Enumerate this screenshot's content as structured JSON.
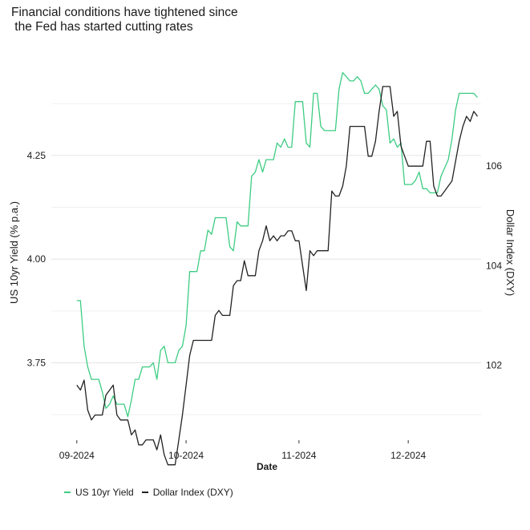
{
  "chart_data": {
    "type": "line",
    "title": "Financial conditions have tightened since\n the Fed has started cutting rates",
    "xlabel": "Date",
    "ylabel_left": "US 10yr Yield (% p.a.)",
    "ylabel_right": "Dollar Index (DXY)",
    "x_ticks": [
      "09-2024",
      "10-2024",
      "11-2024",
      "12-2024"
    ],
    "x_range_days": [
      -7,
      111
    ],
    "x_tick_days": [
      0,
      30,
      61,
      91
    ],
    "ylim_left": [
      3.6,
      4.48
    ],
    "y_ticks_left": [
      3.75,
      4.0,
      4.25
    ],
    "y_tick_labels_left": [
      "3.75",
      "4.00",
      "4.25"
    ],
    "ylim_right": [
      100.8,
      108.13
    ],
    "y_ticks_right": [
      102,
      104,
      106
    ],
    "y_tick_labels_right": [
      "102",
      "104",
      "106"
    ],
    "grid": true,
    "legend_position": "bottom",
    "series": [
      {
        "name": "US 10yr Yield",
        "color": "#3dcc82",
        "axis": "left",
        "x": [
          0,
          1,
          2,
          3,
          4,
          5,
          6,
          7,
          8,
          9,
          10,
          11,
          12,
          13,
          14,
          15,
          16,
          17,
          18,
          19,
          20,
          21,
          22,
          23,
          24,
          25,
          26,
          27,
          28,
          29,
          30,
          31,
          32,
          33,
          34,
          35,
          36,
          37,
          38,
          39,
          40,
          41,
          42,
          43,
          44,
          45,
          46,
          47,
          48,
          49,
          50,
          51,
          52,
          53,
          54,
          55,
          56,
          57,
          58,
          59,
          60,
          61,
          62,
          63,
          64,
          65,
          66,
          67,
          68,
          69,
          70,
          71,
          72,
          73,
          74,
          75,
          76,
          77,
          78,
          79,
          80,
          81,
          82,
          83,
          84,
          85,
          86,
          87,
          88,
          89,
          90,
          91,
          92,
          93,
          94,
          95,
          96,
          97,
          98,
          99,
          100,
          101,
          102,
          103,
          104,
          105,
          106,
          107,
          108,
          109,
          110
        ],
        "values": [
          3.9,
          3.9,
          3.79,
          3.74,
          3.71,
          3.71,
          3.71,
          3.68,
          3.64,
          3.65,
          3.67,
          3.65,
          3.65,
          3.65,
          3.62,
          3.66,
          3.71,
          3.71,
          3.74,
          3.74,
          3.74,
          3.75,
          3.71,
          3.78,
          3.79,
          3.75,
          3.75,
          3.75,
          3.78,
          3.79,
          3.84,
          3.97,
          3.97,
          3.97,
          4.02,
          4.02,
          4.07,
          4.06,
          4.1,
          4.1,
          4.1,
          4.1,
          4.03,
          4.02,
          4.09,
          4.08,
          4.08,
          4.08,
          4.2,
          4.21,
          4.24,
          4.21,
          4.24,
          4.24,
          4.24,
          4.28,
          4.27,
          4.29,
          4.27,
          4.27,
          4.38,
          4.38,
          4.38,
          4.28,
          4.27,
          4.4,
          4.4,
          4.32,
          4.31,
          4.31,
          4.31,
          4.31,
          4.41,
          4.45,
          4.44,
          4.43,
          4.43,
          4.44,
          4.43,
          4.4,
          4.4,
          4.41,
          4.42,
          4.41,
          4.37,
          4.36,
          4.28,
          4.29,
          4.27,
          4.28,
          4.18,
          4.18,
          4.18,
          4.19,
          4.21,
          4.17,
          4.17,
          4.16,
          4.16,
          4.16,
          4.2,
          4.22,
          4.24,
          4.29,
          4.36,
          4.4,
          4.4,
          4.4,
          4.4,
          4.4,
          4.39
        ]
      },
      {
        "name": "Dollar Index (DXY)",
        "color": "#222222",
        "axis": "right",
        "x": [
          0,
          1,
          2,
          3,
          4,
          5,
          6,
          7,
          8,
          9,
          10,
          11,
          12,
          13,
          14,
          15,
          16,
          17,
          18,
          19,
          20,
          21,
          22,
          23,
          24,
          25,
          26,
          27,
          28,
          29,
          30,
          31,
          32,
          33,
          34,
          35,
          36,
          37,
          38,
          39,
          40,
          41,
          42,
          43,
          44,
          45,
          46,
          47,
          48,
          49,
          50,
          51,
          52,
          53,
          54,
          55,
          56,
          57,
          58,
          59,
          60,
          61,
          62,
          63,
          64,
          65,
          66,
          67,
          68,
          69,
          70,
          71,
          72,
          73,
          74,
          75,
          76,
          77,
          78,
          79,
          80,
          81,
          82,
          83,
          84,
          85,
          86,
          87,
          88,
          89,
          90,
          91,
          92,
          93,
          94,
          95,
          96,
          97,
          98,
          99,
          100,
          101,
          102,
          103,
          104,
          105,
          106,
          107,
          108,
          109,
          110
        ],
        "values": [
          101.6,
          101.5,
          101.7,
          101.1,
          100.9,
          101.0,
          101.0,
          101.0,
          101.4,
          101.5,
          101.6,
          101.0,
          100.9,
          100.9,
          100.9,
          100.6,
          100.7,
          100.4,
          100.4,
          100.5,
          100.5,
          100.5,
          100.3,
          100.6,
          100.2,
          100.0,
          100.0,
          100.0,
          100.5,
          101.0,
          101.6,
          102.2,
          102.5,
          102.5,
          102.5,
          102.5,
          102.5,
          102.5,
          103.0,
          103.1,
          103.0,
          103.0,
          103.0,
          103.6,
          103.7,
          103.7,
          104.1,
          103.8,
          103.8,
          103.8,
          104.3,
          104.5,
          104.8,
          104.5,
          104.6,
          104.5,
          104.6,
          104.6,
          104.7,
          104.7,
          104.5,
          104.5,
          104.0,
          103.5,
          104.3,
          104.2,
          104.3,
          104.3,
          104.3,
          104.3,
          105.5,
          105.4,
          105.4,
          105.6,
          106.0,
          106.8,
          106.8,
          106.8,
          106.8,
          106.8,
          106.2,
          106.2,
          106.5,
          107.1,
          107.6,
          107.6,
          107.6,
          107.0,
          107.1,
          106.4,
          106.2,
          106.0,
          106.0,
          106.0,
          106.0,
          106.0,
          106.5,
          106.5,
          105.6,
          105.4,
          105.4,
          105.5,
          105.6,
          105.7,
          106.1,
          106.5,
          106.8,
          107.0,
          106.9,
          107.1,
          107.0
        ]
      }
    ]
  }
}
